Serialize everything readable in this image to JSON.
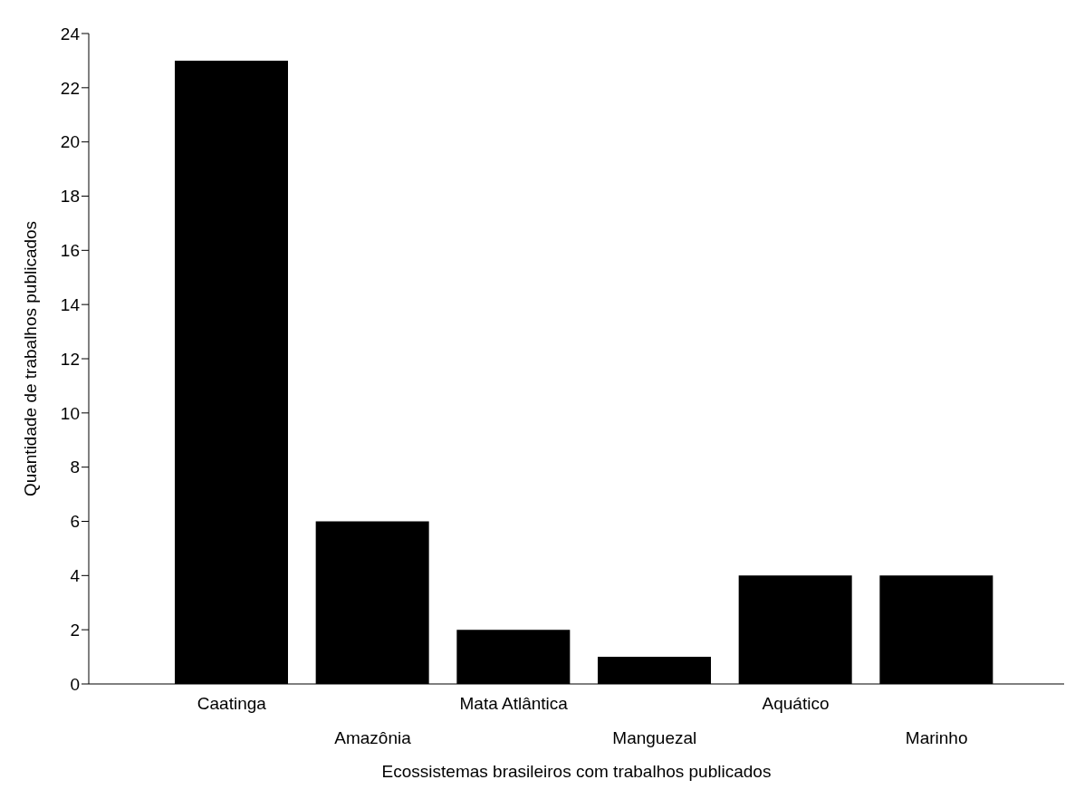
{
  "chart_data": {
    "type": "bar",
    "xlabel": "Ecossistemas brasileiros com trabalhos publicados",
    "ylabel": "Quantidade de trabalhos publicados",
    "categories": [
      "Caatinga",
      "Amazônia",
      "Mata Atlântica",
      "Manguezal",
      "Aquático",
      "Marinho"
    ],
    "values": [
      23,
      6,
      2,
      1,
      4,
      4
    ],
    "color": "#000000",
    "ylim": [
      0,
      24
    ],
    "yticks": [
      0,
      2,
      4,
      6,
      8,
      10,
      12,
      14,
      16,
      18,
      20,
      22,
      24
    ],
    "grid": false,
    "legend": false
  }
}
